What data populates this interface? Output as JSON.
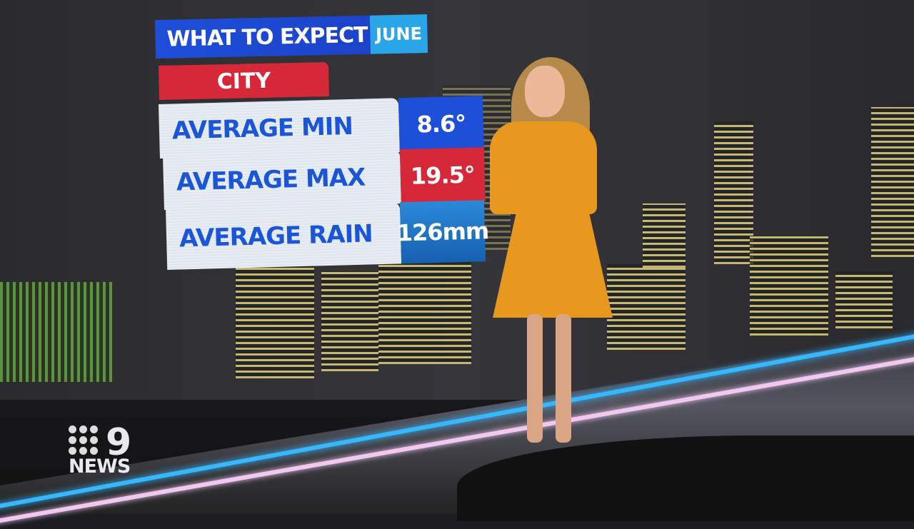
{
  "graphic": {
    "title": "WHAT TO EXPECT",
    "month": "JUNE",
    "location": "CITY",
    "rows": [
      {
        "label": "AVERAGE MIN",
        "value": "8.6°",
        "color": "#1e4fd8"
      },
      {
        "label": "AVERAGE MAX",
        "value": "19.5°",
        "color": "#d7283a"
      },
      {
        "label": "AVERAGE RAIN",
        "value": "126mm",
        "color": "#1f78c8"
      }
    ]
  },
  "logo": {
    "number": "9",
    "text": "NEWS"
  },
  "colors": {
    "dress": "#e8981f",
    "floor_glow_blue": "#36b8ff",
    "floor_glow_pink": "#f0c8f0"
  }
}
